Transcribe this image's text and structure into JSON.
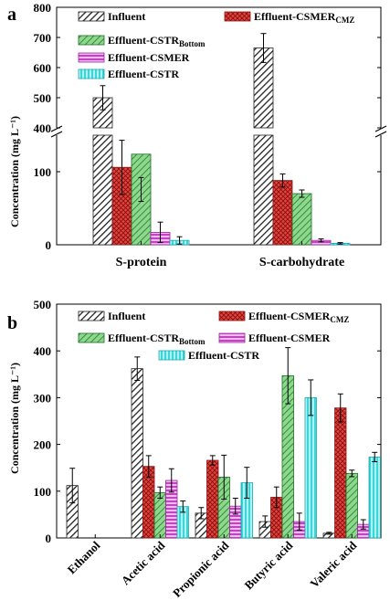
{
  "chart_data": [
    {
      "type": "bar",
      "panel_label": "a",
      "ylabel": "Concentration (mg L⁻¹)",
      "y_axis_break": [
        150,
        400
      ],
      "ylim": [
        0,
        800
      ],
      "yticks_lower": [
        "0",
        "100"
      ],
      "yticks_upper": [
        "400",
        "500",
        "600",
        "700",
        "800"
      ],
      "categories": [
        "S-protein",
        "S-carbohydrate"
      ],
      "series": [
        {
          "name": "Influent",
          "color": "#ffffff",
          "pattern": "hatch-diag",
          "values": [
            500,
            665
          ],
          "errors": [
            40,
            48
          ]
        },
        {
          "name": "Effluent-CSMER",
          "sub": "CMZ",
          "color": "#e8403a",
          "pattern": "cross",
          "values": [
            106,
            88
          ],
          "errors": [
            37,
            9
          ]
        },
        {
          "name": "Effluent-CSTR",
          "sub": "Bottom",
          "color": "#3fb04a",
          "pattern": "hatch-diag-light",
          "values": [
            124,
            70
          ],
          "errors": [
            32,
            5
          ]
        },
        {
          "name": "Effluent-CSMER",
          "sub": "",
          "color": "#e040e0",
          "pattern": "horizontal",
          "values": [
            17,
            6
          ],
          "errors": [
            14,
            2
          ]
        },
        {
          "name": "Effluent-CSTR",
          "sub": "",
          "color": "#4fe6e6",
          "pattern": "vertical",
          "values": [
            6,
            2
          ],
          "errors": [
            5,
            1
          ]
        }
      ]
    },
    {
      "type": "bar",
      "panel_label": "b",
      "ylabel": "Concentration (mg L⁻¹)",
      "ylim": [
        0,
        500
      ],
      "yticks": [
        "0",
        "100",
        "200",
        "300",
        "400",
        "500"
      ],
      "categories": [
        "Ethanol",
        "Acetic acid",
        "Propionic acid",
        "Butyric acid",
        "Valeric acid"
      ],
      "series": [
        {
          "name": "Influent",
          "color": "#ffffff",
          "pattern": "hatch-diag",
          "values": [
            112,
            362,
            53,
            35,
            10
          ],
          "errors": [
            37,
            25,
            12,
            12,
            2
          ]
        },
        {
          "name": "Effluent-CSMER",
          "sub": "CMZ",
          "color": "#e8403a",
          "pattern": "cross",
          "values": [
            0,
            153,
            166,
            87,
            278
          ],
          "errors": [
            0,
            23,
            10,
            22,
            30
          ]
        },
        {
          "name": "Effluent-CSTR",
          "sub": "Bottom",
          "color": "#3fb04a",
          "pattern": "hatch-diag-light",
          "values": [
            0,
            97,
            130,
            347,
            138
          ],
          "errors": [
            0,
            12,
            47,
            60,
            7
          ]
        },
        {
          "name": "Effluent-CSMER",
          "sub": "",
          "color": "#e040e0",
          "pattern": "horizontal",
          "values": [
            0,
            123,
            68,
            35,
            29
          ],
          "errors": [
            0,
            25,
            17,
            18,
            10
          ]
        },
        {
          "name": "Effluent-CSTR",
          "sub": "",
          "color": "#4fe6e6",
          "pattern": "vertical",
          "values": [
            0,
            67,
            118,
            300,
            173
          ],
          "errors": [
            0,
            12,
            33,
            38,
            10
          ]
        }
      ]
    }
  ]
}
